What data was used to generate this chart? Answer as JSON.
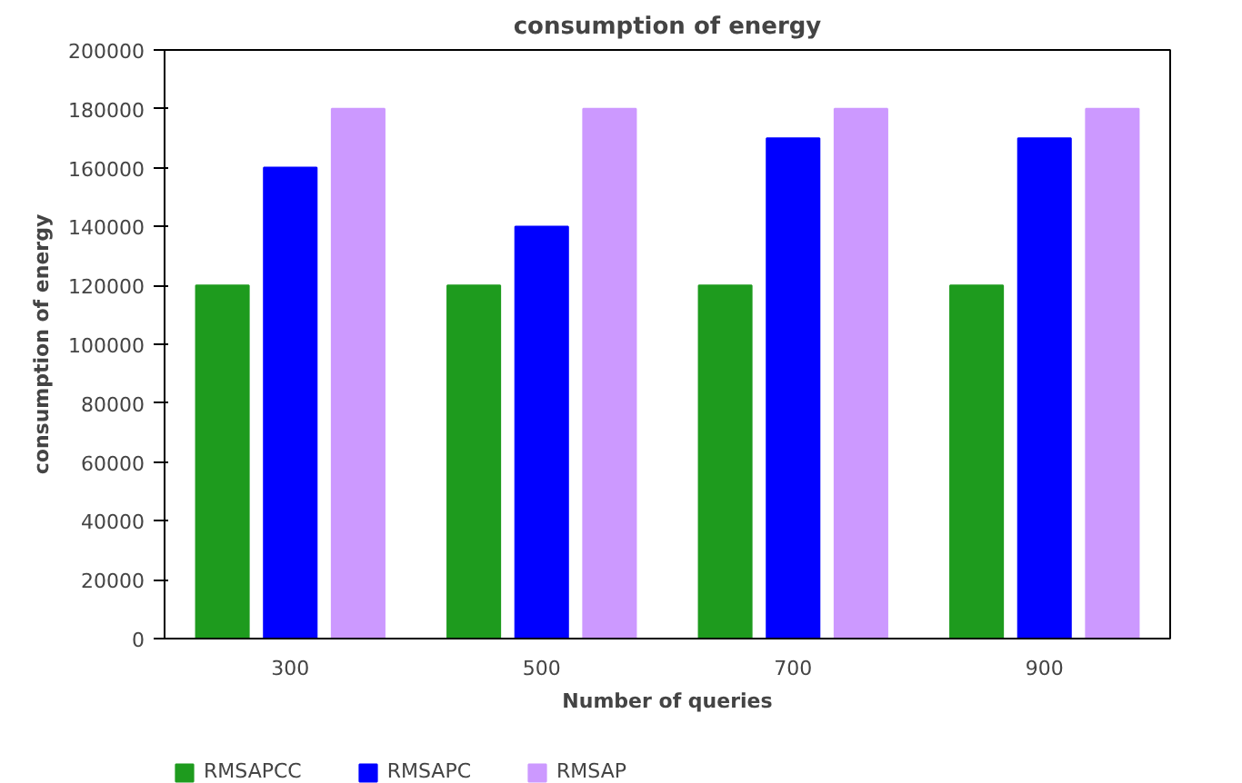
{
  "chart_data": {
    "type": "bar",
    "title": "consumption of energy",
    "xlabel": "Number of queries",
    "ylabel": "consumption of energy",
    "categories": [
      "300",
      "500",
      "700",
      "900"
    ],
    "series": [
      {
        "name": "RMSAPCC",
        "color": "#1e9b1e",
        "values": [
          120000,
          120000,
          120000,
          120000
        ]
      },
      {
        "name": "RMSAPC",
        "color": "#0000ff",
        "values": [
          160000,
          140000,
          170000,
          170000
        ]
      },
      {
        "name": "RMSAP",
        "color": "#cc99ff",
        "values": [
          180000,
          180000,
          180000,
          180000
        ]
      }
    ],
    "ylim": [
      0,
      200000
    ],
    "yticks": [
      0,
      20000,
      40000,
      60000,
      80000,
      100000,
      120000,
      140000,
      160000,
      180000,
      200000
    ],
    "grid": false,
    "legend": "bottom left"
  }
}
